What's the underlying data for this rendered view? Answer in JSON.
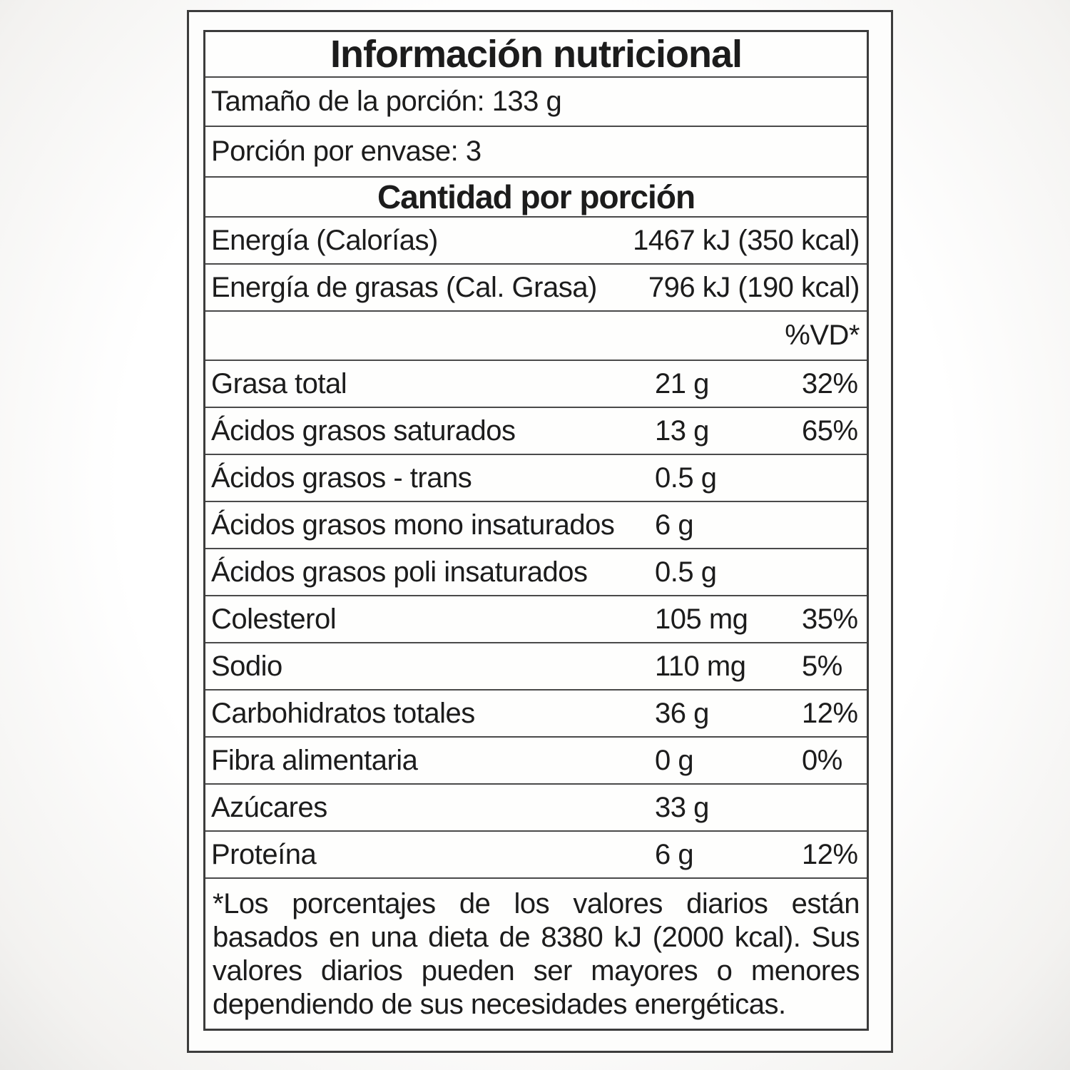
{
  "label": {
    "title": "Información nutricional",
    "serving_size": "Tamaño de la porción: 133 g",
    "servings_per_container": "Porción por envase: 3",
    "amount_per_serving_header": "Cantidad por porción",
    "energy_rows": [
      {
        "name": "Energía (Calorías)",
        "value": "1467 kJ (350 kcal)"
      },
      {
        "name": "Energía de grasas (Cal. Grasa)",
        "value": "796 kJ (190 kcal)"
      }
    ],
    "dv_header": "%VD*",
    "nutrients": [
      {
        "name": "Grasa total",
        "amount": "21 g",
        "dv": "32%"
      },
      {
        "name": "Ácidos grasos saturados",
        "amount": "13 g",
        "dv": "65%"
      },
      {
        "name": "Ácidos grasos - trans",
        "amount": "0.5 g",
        "dv": ""
      },
      {
        "name": "Ácidos grasos mono insaturados",
        "amount": "6 g",
        "dv": ""
      },
      {
        "name": "Ácidos grasos poli insaturados",
        "amount": "0.5 g",
        "dv": ""
      },
      {
        "name": "Colesterol",
        "amount": "105 mg",
        "dv": "35%"
      },
      {
        "name": "Sodio",
        "amount": "110 mg",
        "dv": "5%"
      },
      {
        "name": "Carbohidratos totales",
        "amount": "36 g",
        "dv": "12%"
      },
      {
        "name": "Fibra alimentaria",
        "amount": "0 g",
        "dv": "0%"
      },
      {
        "name": "Azúcares",
        "amount": "33 g",
        "dv": ""
      },
      {
        "name": "Proteína",
        "amount": "6 g",
        "dv": "12%"
      }
    ],
    "footnote": "*Los porcentajes de los valores diarios están basados en una dieta de 8380 kJ (2000 kcal). Sus valores diarios pueden ser mayores o menores dependiendo de sus necesidades energéticas."
  }
}
